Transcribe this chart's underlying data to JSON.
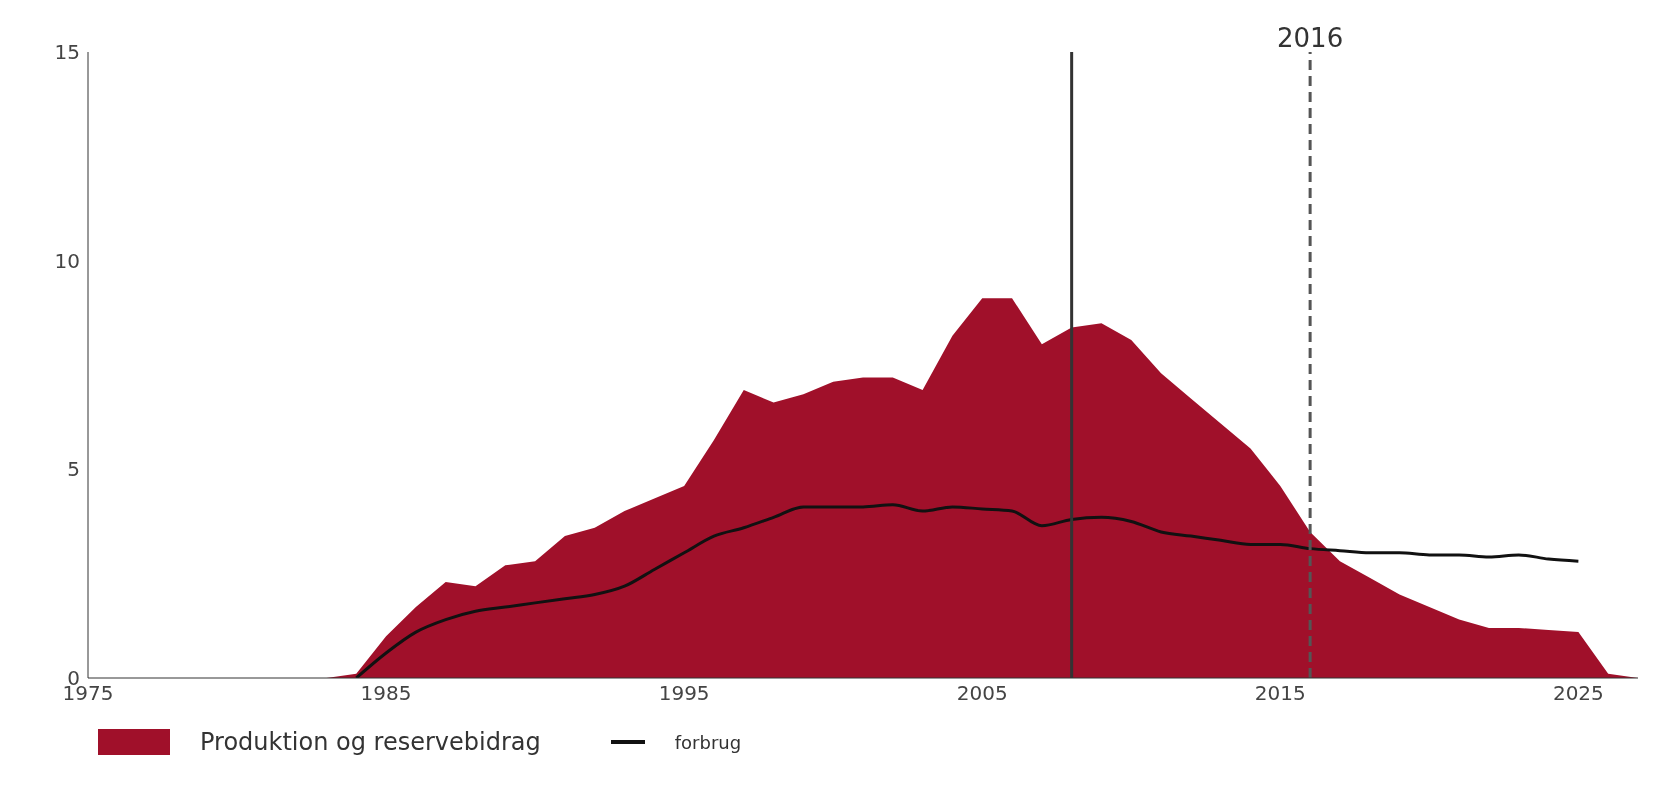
{
  "chart_data": {
    "type": "area",
    "xlim": [
      1975,
      2027
    ],
    "xticks": [
      1975,
      1985,
      1995,
      2005,
      2015,
      2025
    ],
    "ylim": [
      0,
      15
    ],
    "yticks": [
      0,
      5,
      10,
      15
    ],
    "grid": false,
    "legend": "bottom left",
    "series": [
      {
        "name": "Produktion og reservebidrag",
        "color": "#a0102a",
        "x": [
          1975,
          1976,
          1977,
          1978,
          1979,
          1980,
          1981,
          1982,
          1983,
          1984,
          1985,
          1986,
          1987,
          1988,
          1989,
          1990,
          1991,
          1992,
          1993,
          1994,
          1995,
          1996,
          1997,
          1998,
          1999,
          2000,
          2001,
          2002,
          2003,
          2004,
          2005,
          2006,
          2007,
          2008,
          2009,
          2010,
          2011,
          2012,
          2013,
          2014,
          2015,
          2016,
          2017,
          2018,
          2019,
          2020,
          2021,
          2022,
          2023,
          2024,
          2025,
          2026,
          2027
        ],
        "values": [
          0,
          0,
          0,
          0,
          0,
          0,
          0,
          0,
          0,
          0.1,
          1.0,
          1.7,
          2.3,
          2.2,
          2.7,
          2.8,
          3.4,
          3.6,
          4.0,
          4.3,
          4.6,
          5.7,
          6.9,
          6.6,
          6.8,
          7.1,
          7.2,
          7.2,
          6.9,
          8.2,
          9.1,
          9.1,
          8.0,
          8.4,
          8.5,
          8.1,
          7.3,
          6.7,
          6.1,
          5.5,
          4.6,
          3.5,
          2.8,
          2.4,
          2.0,
          1.7,
          1.4,
          1.2,
          1.2,
          1.15,
          1.1,
          0.1,
          0
        ]
      },
      {
        "name": "forbrug",
        "type": "line",
        "color": "#111111",
        "x": [
          1984,
          1985,
          1986,
          1987,
          1988,
          1989,
          1990,
          1991,
          1992,
          1993,
          1994,
          1995,
          1996,
          1997,
          1998,
          1999,
          2000,
          2001,
          2002,
          2003,
          2004,
          2005,
          2006,
          2007,
          2008,
          2009,
          2010,
          2011,
          2012,
          2013,
          2014,
          2015,
          2016,
          2017,
          2018,
          2019,
          2020,
          2021,
          2022,
          2023,
          2024,
          2025
        ],
        "values": [
          0,
          0.6,
          1.1,
          1.4,
          1.6,
          1.7,
          1.8,
          1.9,
          2.0,
          2.2,
          2.6,
          3.0,
          3.4,
          3.6,
          3.85,
          4.1,
          4.1,
          4.1,
          4.15,
          4.0,
          4.1,
          4.05,
          4.0,
          3.65,
          3.8,
          3.85,
          3.75,
          3.5,
          3.4,
          3.3,
          3.2,
          3.2,
          3.1,
          3.05,
          3.0,
          3.0,
          2.95,
          2.95,
          2.9,
          2.95,
          2.85,
          2.8
        ]
      }
    ],
    "ref_lines": [
      {
        "axis": "x",
        "value": 2008,
        "label": null,
        "color": "#333333",
        "line_style": "solid"
      },
      {
        "axis": "x",
        "value": 2016,
        "label": "2016",
        "color": "#555555",
        "line_style": "dashed"
      }
    ]
  }
}
